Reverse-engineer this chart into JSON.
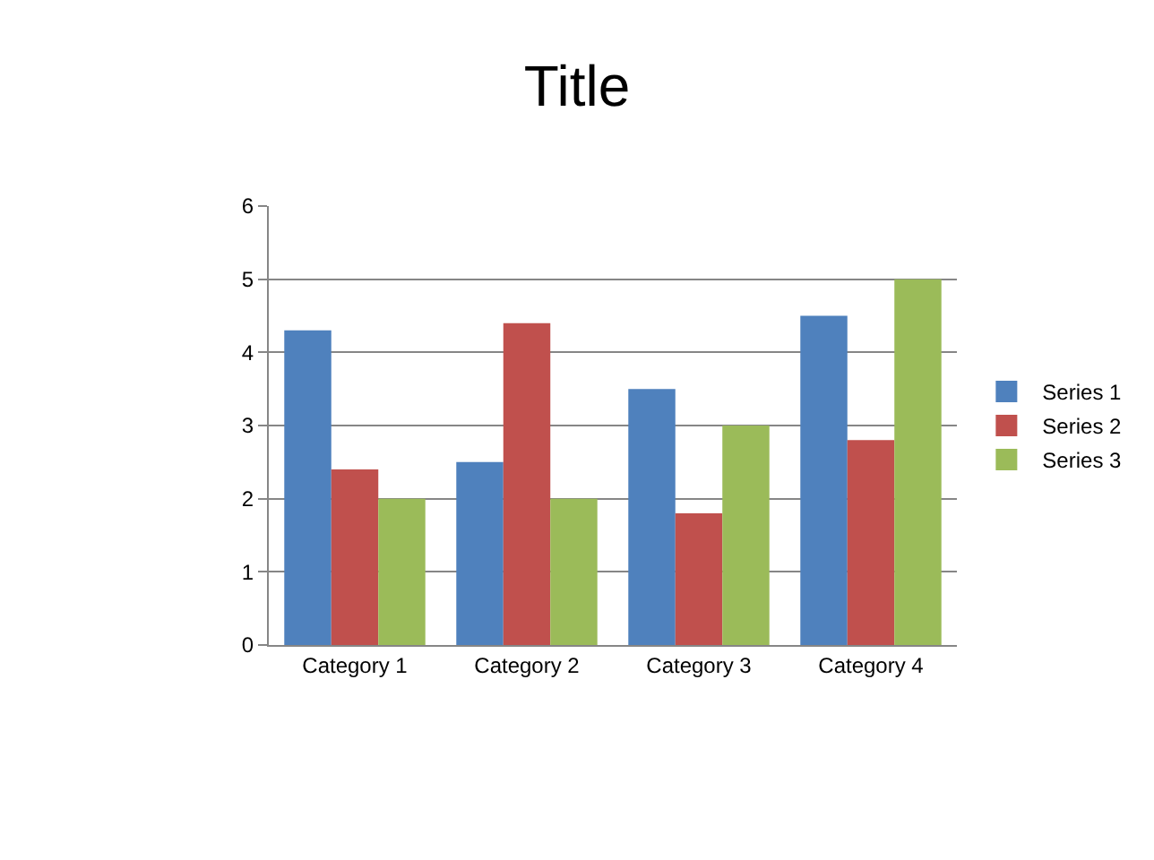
{
  "chart_data": {
    "type": "bar",
    "title": "Title",
    "categories": [
      "Category 1",
      "Category 2",
      "Category 3",
      "Category 4"
    ],
    "series": [
      {
        "name": "Series 1",
        "color": "#4f81bd",
        "values": [
          4.3,
          2.5,
          3.5,
          4.5
        ]
      },
      {
        "name": "Series 2",
        "color": "#c0504d",
        "values": [
          2.4,
          4.4,
          1.8,
          2.8
        ]
      },
      {
        "name": "Series 3",
        "color": "#9bbb59",
        "values": [
          2,
          2,
          3,
          5
        ]
      }
    ],
    "ylim": [
      0,
      6
    ],
    "yticks": [
      0,
      1,
      2,
      3,
      4,
      5,
      6
    ],
    "grid": "y",
    "legend": "right"
  }
}
